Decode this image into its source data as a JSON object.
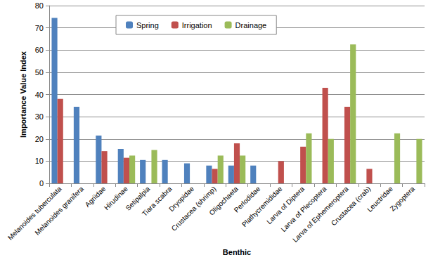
{
  "chart_data": {
    "type": "bar",
    "x_label": "Benthic",
    "y_label": "Importance Value Index",
    "categories": [
      "Melanoides tuberculata",
      "Melanoides granifera",
      "Agriidae",
      "Hirudinae",
      "Setipalpia",
      "Tiara scabra",
      "Dryopidae",
      "Crustacea (shrimp)",
      "Oligochaeta",
      "Perlodidae",
      "Plathycremididae",
      "Larva of Diptera",
      "Larva of Plecoptera",
      "Larva of Ephemeroptera",
      "Crustacea (crab)",
      "Leuctridae",
      "Zygoptera"
    ],
    "series": [
      {
        "name": "Spring",
        "color": "#4f81bd",
        "values": [
          74.5,
          34.5,
          21.5,
          15.5,
          10.5,
          10.5,
          9,
          8,
          8,
          8,
          null,
          null,
          null,
          null,
          null,
          null,
          null
        ]
      },
      {
        "name": "Irrigation",
        "color": "#c0504d",
        "values": [
          38,
          null,
          14.5,
          11.5,
          null,
          null,
          null,
          6.5,
          18,
          null,
          10,
          16.5,
          43,
          34.5,
          6.5,
          null,
          null
        ]
      },
      {
        "name": "Drainage",
        "color": "#9bbb59",
        "values": [
          null,
          null,
          null,
          12.5,
          15,
          null,
          null,
          12.5,
          12.5,
          null,
          null,
          22.5,
          20,
          62.5,
          null,
          22.5,
          20
        ]
      }
    ],
    "ylim": [
      0,
      80
    ],
    "yticks": [
      0,
      10,
      20,
      30,
      40,
      50,
      60,
      70,
      80
    ],
    "grid": true,
    "legend": "top"
  }
}
